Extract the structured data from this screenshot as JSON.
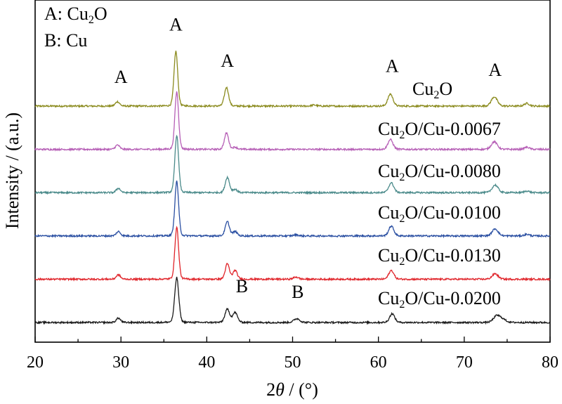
{
  "chart_data": {
    "type": "line",
    "title": "",
    "xlabel": "2θ / (°)",
    "xlabel_parts": {
      "symbol": "2",
      "theta": "θ",
      "unit": " / (°)"
    },
    "ylabel": "Intensity / (a.u.)",
    "xlim": [
      20,
      80
    ],
    "xticks": [
      "20",
      "30",
      "40",
      "50",
      "60",
      "70",
      "80"
    ],
    "ylabel_has_ticks": false,
    "legend_text": [
      {
        "key": "A",
        "sep": ": ",
        "formula": [
          "Cu",
          "2",
          "O"
        ]
      },
      {
        "key": "B",
        "sep": ": ",
        "formula": [
          "Cu",
          "",
          ""
        ]
      }
    ],
    "series": [
      {
        "name": "Cu2O",
        "label_parts": [
          "Cu",
          "2",
          "O",
          ""
        ],
        "color": "#8b8b1e",
        "offset": 5.0,
        "base": 0.0,
        "peaks": [
          [
            29.6,
            0.08,
            0.25
          ],
          [
            36.4,
            1.0,
            0.22
          ],
          [
            42.3,
            0.34,
            0.25
          ],
          [
            52.5,
            0.02,
            0.3
          ],
          [
            61.4,
            0.22,
            0.3
          ],
          [
            73.5,
            0.17,
            0.35
          ],
          [
            77.3,
            0.05,
            0.3
          ]
        ]
      },
      {
        "name": "Cu2O/Cu-0.0067",
        "label_parts": [
          "Cu",
          "2",
          "O",
          "/Cu-0.0067"
        ],
        "color": "#b65fb6",
        "offset": 4.0,
        "base": 0.0,
        "peaks": [
          [
            29.6,
            0.08,
            0.25
          ],
          [
            36.5,
            1.05,
            0.22
          ],
          [
            42.3,
            0.3,
            0.25
          ],
          [
            43.3,
            0.04,
            0.25
          ],
          [
            61.4,
            0.18,
            0.3
          ],
          [
            73.5,
            0.14,
            0.35
          ],
          [
            77.3,
            0.04,
            0.3
          ]
        ]
      },
      {
        "name": "Cu2O/Cu-0.0080",
        "label_parts": [
          "Cu",
          "2",
          "O",
          "/Cu-0.0080"
        ],
        "color": "#4a8a8a",
        "offset": 3.0,
        "base": 0.0,
        "peaks": [
          [
            29.7,
            0.08,
            0.25
          ],
          [
            36.5,
            1.05,
            0.22
          ],
          [
            42.4,
            0.28,
            0.25
          ],
          [
            43.3,
            0.06,
            0.25
          ],
          [
            61.5,
            0.18,
            0.3
          ],
          [
            73.6,
            0.14,
            0.35
          ],
          [
            77.3,
            0.03,
            0.3
          ]
        ]
      },
      {
        "name": "Cu2O/Cu-0.0100",
        "label_parts": [
          "Cu",
          "2",
          "O",
          "/Cu-0.0100"
        ],
        "color": "#2a4fa2",
        "offset": 2.0,
        "base": 0.0,
        "peaks": [
          [
            29.7,
            0.08,
            0.25
          ],
          [
            36.5,
            1.0,
            0.22
          ],
          [
            42.4,
            0.26,
            0.25
          ],
          [
            43.3,
            0.08,
            0.25
          ],
          [
            50.4,
            0.02,
            0.3
          ],
          [
            61.5,
            0.18,
            0.3
          ],
          [
            73.6,
            0.13,
            0.35
          ],
          [
            77.3,
            0.03,
            0.3
          ]
        ]
      },
      {
        "name": "Cu2O/Cu-0.0130",
        "label_parts": [
          "Cu",
          "2",
          "O",
          "/Cu-0.0130"
        ],
        "color": "#e0242a",
        "offset": 1.0,
        "base": 0.0,
        "peaks": [
          [
            29.7,
            0.08,
            0.25
          ],
          [
            36.5,
            0.95,
            0.22
          ],
          [
            42.4,
            0.28,
            0.25
          ],
          [
            43.3,
            0.16,
            0.25
          ],
          [
            50.4,
            0.04,
            0.3
          ],
          [
            61.5,
            0.16,
            0.3
          ],
          [
            73.6,
            0.1,
            0.35
          ]
        ]
      },
      {
        "name": "Cu2O/Cu-0.0200",
        "label_parts": [
          "Cu",
          "2",
          "O",
          "/Cu-0.0200"
        ],
        "color": "#1a1a1a",
        "offset": 0.0,
        "base": 0.0,
        "peaks": [
          [
            29.7,
            0.08,
            0.25
          ],
          [
            36.5,
            0.82,
            0.24
          ],
          [
            42.4,
            0.24,
            0.28
          ],
          [
            43.3,
            0.18,
            0.28
          ],
          [
            50.5,
            0.07,
            0.35
          ],
          [
            61.6,
            0.16,
            0.3
          ],
          [
            73.8,
            0.12,
            0.4
          ],
          [
            74.5,
            0.05,
            0.4
          ]
        ]
      }
    ],
    "annotations": [
      {
        "text": "A",
        "x": 30.0,
        "series": "Cu2O",
        "dy": 0.42
      },
      {
        "text": "A",
        "x": 36.4,
        "series": "Cu2O",
        "dy": 1.38
      },
      {
        "text": "A",
        "x": 42.4,
        "series": "Cu2O",
        "dy": 0.72
      },
      {
        "text": "A",
        "x": 61.6,
        "series": "Cu2O",
        "dy": 0.62
      },
      {
        "text": "A",
        "x": 73.6,
        "series": "Cu2O",
        "dy": 0.55
      },
      {
        "text": "B",
        "x": 44.1,
        "series": "Cu2O/Cu-0.0200",
        "dy": 0.55
      },
      {
        "text": "B",
        "x": 50.6,
        "series": "Cu2O/Cu-0.0200",
        "dy": 0.45
      }
    ]
  }
}
